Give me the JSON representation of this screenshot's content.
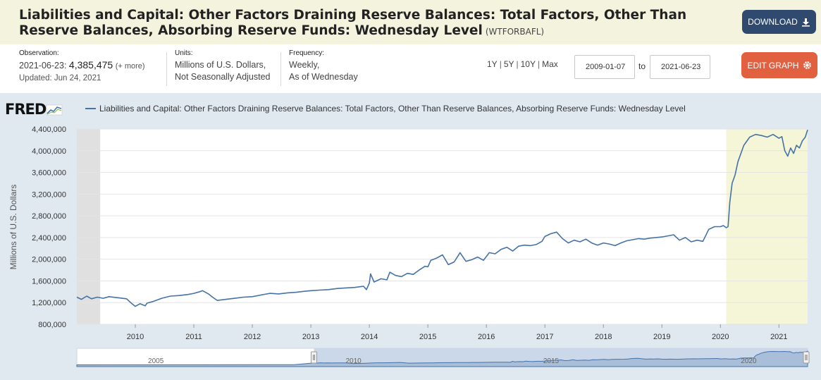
{
  "header": {
    "title": "Liabilities and Capital: Other Factors Draining Reserve Balances: Total Factors, Other Than Reserve Balances, Absorbing Reserve Funds: Wednesday Level",
    "series_id": "(WTFORBAFL)",
    "download_label": "DOWNLOAD",
    "background": "#f4f4de"
  },
  "meta": {
    "observation_label": "Observation:",
    "observation_date": "2021-06-23:",
    "observation_value": "4,385,475",
    "more_label": "(+ more)",
    "updated": "Updated: Jun 24, 2021",
    "units_label": "Units:",
    "units_line1": "Millions of U.S. Dollars,",
    "units_line2": "Not Seasonally Adjusted",
    "frequency_label": "Frequency:",
    "frequency_line1": "Weekly,",
    "frequency_line2": "As of Wednesday"
  },
  "controls": {
    "range_1y": "1Y",
    "range_5y": "5Y",
    "range_10y": "10Y",
    "range_max": "Max",
    "sep": "|",
    "start_date": "2009-01-07",
    "to_label": "to",
    "end_date": "2021-06-23",
    "edit_label": "EDIT GRAPH",
    "edit_color": "#e06040"
  },
  "brand": {
    "logo_text": "FRED"
  },
  "chart_data": {
    "type": "line",
    "title": "Liabilities and Capital: Other Factors Draining Reserve Balances: Total Factors, Other Than Reserve Balances, Absorbing Reserve Funds: Wednesday Level",
    "ylabel": "Millions of U.S. Dollars",
    "xlabel": "",
    "ylim": [
      800000,
      4400000
    ],
    "xlim": [
      2009.0,
      2021.49
    ],
    "y_ticks": [
      800000,
      1200000,
      1600000,
      2000000,
      2400000,
      2800000,
      3200000,
      3600000,
      4000000,
      4400000
    ],
    "y_tick_labels": [
      "800,000",
      "1,200,000",
      "1,600,000",
      "2,000,000",
      "2,400,000",
      "2,800,000",
      "3,200,000",
      "3,600,000",
      "4,000,000",
      "4,400,000"
    ],
    "x_ticks": [
      2010,
      2011,
      2012,
      2013,
      2014,
      2015,
      2016,
      2017,
      2018,
      2019,
      2020,
      2021
    ],
    "x_tick_labels": [
      "2010",
      "2011",
      "2012",
      "2013",
      "2014",
      "2015",
      "2016",
      "2017",
      "2018",
      "2019",
      "2020",
      "2021"
    ],
    "grid": true,
    "legend": "top-left",
    "recessions": [
      [
        2009.0,
        2009.4
      ],
      [
        2020.1,
        2021.49
      ]
    ],
    "recession_colors": [
      "#e0e0e0",
      "#f5f5d8"
    ],
    "line_color": "#4572a7",
    "series": [
      {
        "name": "Liabilities and Capital: Other Factors Draining Reserve Balances: Total Factors, Other Than Reserve Balances, Absorbing Reserve Funds: Wednesday Level",
        "x": [
          2009.0,
          2009.08,
          2009.17,
          2009.25,
          2009.35,
          2009.45,
          2009.55,
          2009.7,
          2009.85,
          2009.92,
          2010.0,
          2010.08,
          2010.17,
          2010.2,
          2010.3,
          2010.45,
          2010.6,
          2010.75,
          2010.9,
          2011.0,
          2011.1,
          2011.15,
          2011.25,
          2011.32,
          2011.4,
          2011.55,
          2011.7,
          2011.85,
          2012.0,
          2012.15,
          2012.3,
          2012.45,
          2012.6,
          2012.75,
          2012.9,
          2013.0,
          2013.15,
          2013.3,
          2013.45,
          2013.6,
          2013.75,
          2013.9,
          2013.95,
          2014.0,
          2014.02,
          2014.08,
          2014.2,
          2014.3,
          2014.35,
          2014.45,
          2014.55,
          2014.65,
          2014.75,
          2014.85,
          2014.95,
          2015.0,
          2015.05,
          2015.15,
          2015.25,
          2015.35,
          2015.45,
          2015.55,
          2015.65,
          2015.75,
          2015.85,
          2015.95,
          2016.0,
          2016.05,
          2016.15,
          2016.25,
          2016.35,
          2016.45,
          2016.55,
          2016.65,
          2016.75,
          2016.85,
          2016.95,
          2017.0,
          2017.1,
          2017.2,
          2017.3,
          2017.4,
          2017.5,
          2017.6,
          2017.7,
          2017.8,
          2017.9,
          2018.0,
          2018.1,
          2018.2,
          2018.3,
          2018.4,
          2018.5,
          2018.6,
          2018.7,
          2018.8,
          2018.9,
          2019.0,
          2019.1,
          2019.2,
          2019.3,
          2019.4,
          2019.5,
          2019.6,
          2019.7,
          2019.8,
          2019.9,
          2020.0,
          2020.05,
          2020.1,
          2020.13,
          2020.16,
          2020.2,
          2020.25,
          2020.3,
          2020.4,
          2020.5,
          2020.6,
          2020.7,
          2020.8,
          2020.9,
          2021.0,
          2021.05,
          2021.1,
          2021.15,
          2021.2,
          2021.25,
          2021.3,
          2021.35,
          2021.4,
          2021.45,
          2021.49
        ],
        "y": [
          1300000,
          1260000,
          1320000,
          1270000,
          1300000,
          1280000,
          1310000,
          1290000,
          1270000,
          1200000,
          1130000,
          1180000,
          1140000,
          1190000,
          1220000,
          1280000,
          1320000,
          1330000,
          1350000,
          1370000,
          1400000,
          1420000,
          1360000,
          1300000,
          1240000,
          1260000,
          1280000,
          1300000,
          1310000,
          1340000,
          1370000,
          1360000,
          1380000,
          1390000,
          1410000,
          1420000,
          1430000,
          1440000,
          1460000,
          1470000,
          1480000,
          1500000,
          1440000,
          1560000,
          1730000,
          1580000,
          1640000,
          1620000,
          1760000,
          1700000,
          1680000,
          1740000,
          1720000,
          1800000,
          1870000,
          1860000,
          1980000,
          2020000,
          2080000,
          1900000,
          1950000,
          2120000,
          1960000,
          1990000,
          2040000,
          1980000,
          2050000,
          2120000,
          2100000,
          2180000,
          2220000,
          2150000,
          2240000,
          2260000,
          2250000,
          2270000,
          2330000,
          2420000,
          2470000,
          2500000,
          2380000,
          2300000,
          2350000,
          2320000,
          2370000,
          2300000,
          2260000,
          2300000,
          2280000,
          2250000,
          2300000,
          2340000,
          2360000,
          2380000,
          2370000,
          2390000,
          2400000,
          2410000,
          2430000,
          2450000,
          2350000,
          2400000,
          2320000,
          2350000,
          2330000,
          2550000,
          2600000,
          2600000,
          2620000,
          2580000,
          2600000,
          3050000,
          3400000,
          3550000,
          3800000,
          4100000,
          4250000,
          4300000,
          4280000,
          4250000,
          4300000,
          4230000,
          4260000,
          4000000,
          3900000,
          4050000,
          3950000,
          4100000,
          4050000,
          4180000,
          4250000,
          4385475
        ]
      }
    ],
    "navigator": {
      "tick_labels": [
        "2005",
        "2010",
        "2015",
        "2020"
      ]
    }
  }
}
